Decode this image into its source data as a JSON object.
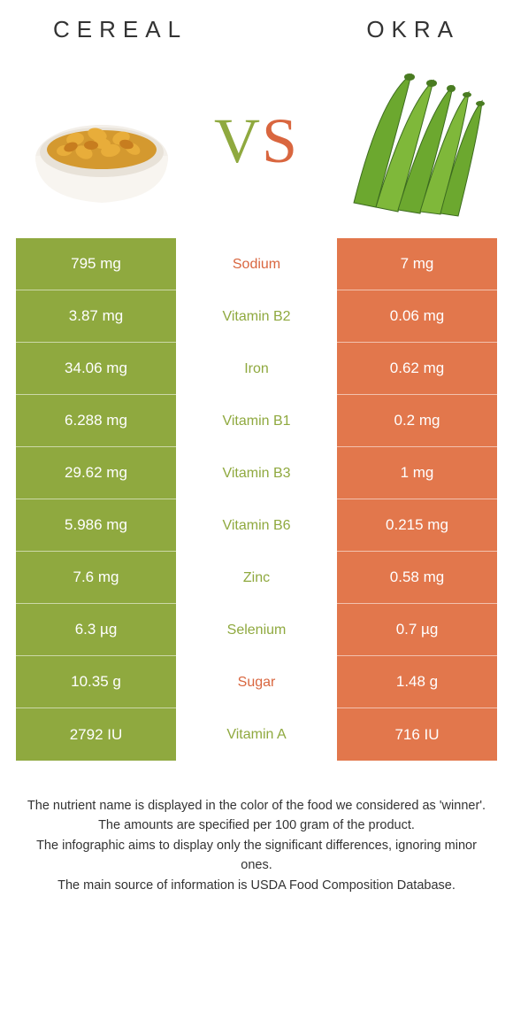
{
  "header": {
    "left_title": "CEREAL",
    "right_title": "OKRA",
    "vs_v": "V",
    "vs_s": "S"
  },
  "colors": {
    "left_bg": "#8fa93f",
    "right_bg": "#e2774c",
    "left_text": "#8fa93f",
    "right_text": "#d9663f",
    "title_color": "#333333",
    "footer_color": "#333333",
    "cell_text": "#ffffff"
  },
  "rows": [
    {
      "left": "795 mg",
      "label": "Sodium",
      "right": "7 mg",
      "winner": "right"
    },
    {
      "left": "3.87 mg",
      "label": "Vitamin B2",
      "right": "0.06 mg",
      "winner": "left"
    },
    {
      "left": "34.06 mg",
      "label": "Iron",
      "right": "0.62 mg",
      "winner": "left"
    },
    {
      "left": "6.288 mg",
      "label": "Vitamin B1",
      "right": "0.2 mg",
      "winner": "left"
    },
    {
      "left": "29.62 mg",
      "label": "Vitamin B3",
      "right": "1 mg",
      "winner": "left"
    },
    {
      "left": "5.986 mg",
      "label": "Vitamin B6",
      "right": "0.215 mg",
      "winner": "left"
    },
    {
      "left": "7.6 mg",
      "label": "Zinc",
      "right": "0.58 mg",
      "winner": "left"
    },
    {
      "left": "6.3 µg",
      "label": "Selenium",
      "right": "0.7 µg",
      "winner": "left"
    },
    {
      "left": "10.35 g",
      "label": "Sugar",
      "right": "1.48 g",
      "winner": "right"
    },
    {
      "left": "2792 IU",
      "label": "Vitamin A",
      "right": "716 IU",
      "winner": "left"
    }
  ],
  "footer": {
    "line1": "The nutrient name is displayed in the color of the food we considered as 'winner'.",
    "line2": "The amounts are specified per 100 gram of the product.",
    "line3": "The infographic aims to display only the significant differences, ignoring minor ones.",
    "line4": "The main source of information is USDA Food Composition Database."
  }
}
